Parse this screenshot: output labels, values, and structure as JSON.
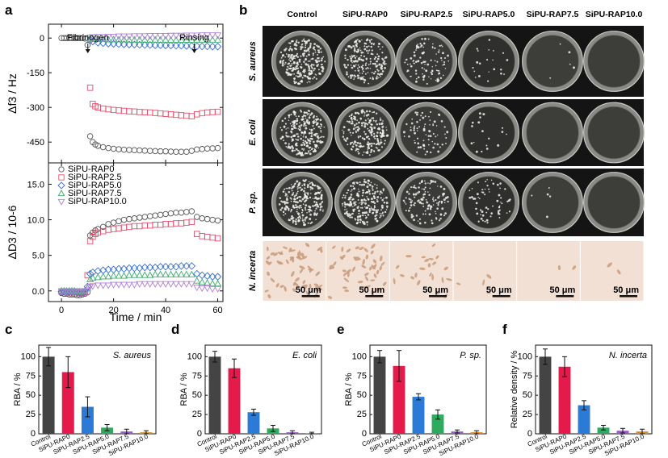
{
  "panel_letters": {
    "a": "a",
    "b": "b",
    "c": "c",
    "d": "d",
    "e": "e",
    "f": "f"
  },
  "chart_data": [
    {
      "id": "a_top",
      "type": "scatter",
      "ylabel": "Δf3 / Hz",
      "ylim": [
        -540,
        60
      ],
      "xlim": [
        -5,
        62
      ],
      "yticks": [
        0,
        -150,
        -300,
        -450
      ],
      "xticks": [
        0,
        20,
        40,
        60
      ],
      "annotations": [
        "Fibrinogen",
        "Rinsing"
      ],
      "series": [
        {
          "name": "SiPU-RAP0",
          "marker": "circle",
          "color": "#555555",
          "x": [
            0,
            1,
            2,
            3,
            4,
            5,
            6,
            7,
            8,
            9,
            10,
            11,
            12,
            13,
            14,
            16,
            18,
            20,
            22,
            24,
            26,
            28,
            30,
            32,
            34,
            36,
            38,
            40,
            42,
            44,
            46,
            48,
            50,
            52,
            54,
            56,
            58,
            60
          ],
          "y": [
            0,
            0,
            0,
            0,
            0,
            0,
            0,
            0,
            0,
            -2,
            -30,
            -425,
            -450,
            -460,
            -466,
            -472,
            -476,
            -479,
            -481,
            -483,
            -484,
            -485,
            -486,
            -487,
            -488,
            -489,
            -490,
            -490,
            -491,
            -492,
            -492,
            -492,
            -488,
            -482,
            -480,
            -478,
            -477,
            -476
          ]
        },
        {
          "name": "SiPU-RAP2.5",
          "marker": "square",
          "color": "#e0506e",
          "x": [
            11,
            12,
            13,
            14,
            16,
            18,
            20,
            22,
            24,
            26,
            28,
            30,
            32,
            34,
            36,
            38,
            40,
            42,
            44,
            46,
            48,
            50,
            52,
            54,
            56,
            58,
            60
          ],
          "y": [
            -215,
            -285,
            -295,
            -300,
            -305,
            -308,
            -311,
            -313,
            -315,
            -317,
            -318,
            -320,
            -321,
            -322,
            -324,
            -326,
            -328,
            -330,
            -332,
            -334,
            -336,
            -338,
            -330,
            -325,
            -322,
            -320,
            -319
          ]
        },
        {
          "name": "SiPU-RAP5.0",
          "marker": "diamond",
          "color": "#3a6fcf",
          "x": [
            11,
            12,
            14,
            16,
            18,
            20,
            22,
            24,
            26,
            28,
            30,
            32,
            34,
            36,
            38,
            40,
            42,
            44,
            46,
            48,
            50,
            52,
            54,
            56,
            58,
            60
          ],
          "y": [
            -10,
            -15,
            -20,
            -22,
            -24,
            -25,
            -26,
            -27,
            -28,
            -28,
            -29,
            -30,
            -30,
            -31,
            -31,
            -32,
            -32,
            -33,
            -33,
            -34,
            -34,
            -35,
            -36,
            -36,
            -37,
            -37
          ]
        },
        {
          "name": "SiPU-RAP7.5",
          "marker": "triangle",
          "color": "#3cae6a",
          "x": [
            11,
            12,
            14,
            16,
            18,
            20,
            22,
            24,
            26,
            28,
            30,
            32,
            34,
            36,
            38,
            40,
            42,
            44,
            46,
            48,
            50,
            52,
            54,
            56,
            58,
            60
          ],
          "y": [
            -3,
            -5,
            -6,
            -6,
            -7,
            -7,
            -7,
            -7,
            -8,
            -8,
            -8,
            -8,
            -8,
            -8,
            -8,
            -8,
            -9,
            -9,
            -9,
            -9,
            -9,
            -8,
            -8,
            -8,
            -8,
            -8
          ]
        },
        {
          "name": "SiPU-RAP10.0",
          "marker": "triangle-down",
          "color": "#b07fd8",
          "x": [
            11,
            12,
            14,
            16,
            18,
            20,
            22,
            24,
            26,
            28,
            30,
            32,
            34,
            36,
            38,
            40,
            42,
            44,
            46,
            48,
            50,
            52,
            54,
            56,
            58,
            60
          ],
          "y": [
            3,
            5,
            6,
            6,
            7,
            7,
            8,
            8,
            8,
            9,
            9,
            9,
            10,
            10,
            10,
            10,
            11,
            11,
            11,
            12,
            12,
            12,
            13,
            13,
            13,
            13
          ]
        }
      ]
    },
    {
      "id": "a_bottom",
      "type": "scatter",
      "xlabel": "Time / min",
      "ylabel": "ΔD3 / 10-6",
      "ylim": [
        -1.5,
        18
      ],
      "xlim": [
        -5,
        62
      ],
      "yticks": [
        0.0,
        5.0,
        10.0,
        15.0
      ],
      "xticks": [
        0,
        20,
        40,
        60
      ],
      "legend": "top-left",
      "series": [
        {
          "name": "SiPU-RAP0",
          "marker": "circle",
          "color": "#555555",
          "x": [
            0,
            1,
            2,
            3,
            4,
            5,
            6,
            7,
            8,
            9,
            10,
            11,
            12,
            13,
            14,
            16,
            18,
            20,
            22,
            24,
            26,
            28,
            30,
            32,
            34,
            36,
            38,
            40,
            42,
            44,
            46,
            48,
            50,
            52,
            54,
            56,
            58,
            60
          ],
          "y": [
            -0.3,
            -0.4,
            -0.4,
            -0.5,
            -0.5,
            -0.5,
            -0.6,
            -0.6,
            -0.5,
            -0.4,
            -0.2,
            7.8,
            8.2,
            8.5,
            8.7,
            9.0,
            9.4,
            9.6,
            9.8,
            10.0,
            10.1,
            10.2,
            10.3,
            10.4,
            10.5,
            10.6,
            10.7,
            10.8,
            10.9,
            11.0,
            11.0,
            11.1,
            11.2,
            10.4,
            10.2,
            10.1,
            10.0,
            9.9
          ]
        },
        {
          "name": "SiPU-RAP2.5",
          "marker": "square",
          "color": "#e0506e",
          "x": [
            0,
            1,
            2,
            3,
            4,
            5,
            6,
            7,
            8,
            9,
            10,
            11,
            12,
            13,
            14,
            16,
            18,
            20,
            22,
            24,
            26,
            28,
            30,
            32,
            34,
            36,
            38,
            40,
            42,
            44,
            46,
            48,
            50,
            52,
            54,
            56,
            58,
            60
          ],
          "y": [
            -0.1,
            -0.1,
            -0.1,
            -0.2,
            -0.2,
            -0.2,
            -0.2,
            -0.3,
            -0.3,
            -0.2,
            2.2,
            7.0,
            7.6,
            8.0,
            8.2,
            8.4,
            8.6,
            8.7,
            8.8,
            8.9,
            9.0,
            9.1,
            9.1,
            9.2,
            9.2,
            9.3,
            9.3,
            9.4,
            9.4,
            9.5,
            9.5,
            9.6,
            9.7,
            8.0,
            7.7,
            7.6,
            7.5,
            7.4
          ]
        },
        {
          "name": "SiPU-RAP5.0",
          "marker": "diamond",
          "color": "#3a6fcf",
          "x": [
            0,
            1,
            2,
            3,
            4,
            5,
            6,
            7,
            8,
            9,
            10,
            11,
            12,
            14,
            16,
            18,
            20,
            22,
            24,
            26,
            28,
            30,
            32,
            34,
            36,
            38,
            40,
            42,
            44,
            46,
            48,
            50,
            52,
            54,
            56,
            58,
            60
          ],
          "y": [
            -0.1,
            -0.1,
            -0.1,
            -0.1,
            -0.1,
            -0.1,
            -0.2,
            -0.2,
            -0.2,
            -0.1,
            0.6,
            2.4,
            2.6,
            2.8,
            2.9,
            3.0,
            3.0,
            3.1,
            3.1,
            3.2,
            3.2,
            3.2,
            3.3,
            3.3,
            3.3,
            3.4,
            3.4,
            3.4,
            3.4,
            3.5,
            3.5,
            3.5,
            2.4,
            2.2,
            2.1,
            2.0,
            2.0
          ]
        },
        {
          "name": "SiPU-RAP7.5",
          "marker": "triangle",
          "color": "#3cae6a",
          "x": [
            0,
            1,
            2,
            3,
            4,
            5,
            6,
            7,
            8,
            9,
            10,
            11,
            12,
            14,
            16,
            18,
            20,
            22,
            24,
            26,
            28,
            30,
            32,
            34,
            36,
            38,
            40,
            42,
            44,
            46,
            48,
            50,
            52,
            54,
            56,
            58,
            60
          ],
          "y": [
            0.0,
            0.0,
            0.0,
            0.0,
            0.0,
            0.0,
            -0.1,
            -0.1,
            -0.1,
            0.0,
            0.4,
            1.6,
            1.8,
            1.9,
            2.0,
            2.0,
            2.1,
            2.1,
            2.1,
            2.2,
            2.2,
            2.2,
            2.2,
            2.2,
            2.3,
            2.3,
            2.3,
            2.3,
            2.3,
            2.3,
            2.3,
            2.3,
            1.4,
            1.2,
            1.1,
            1.0,
            1.0
          ]
        },
        {
          "name": "SiPU-RAP10.0",
          "marker": "triangle-down",
          "color": "#b07fd8",
          "x": [
            0,
            1,
            2,
            3,
            4,
            5,
            6,
            7,
            8,
            9,
            10,
            11,
            12,
            14,
            16,
            18,
            20,
            22,
            24,
            26,
            28,
            30,
            32,
            34,
            36,
            38,
            40,
            42,
            44,
            46,
            48,
            50,
            52,
            54,
            56,
            58,
            60
          ],
          "y": [
            0.0,
            0.0,
            0.0,
            0.0,
            0.0,
            0.0,
            0.0,
            0.0,
            0.0,
            0.0,
            0.2,
            0.6,
            0.7,
            0.8,
            0.8,
            0.8,
            0.9,
            0.9,
            0.9,
            0.9,
            0.9,
            1.0,
            1.0,
            1.0,
            1.0,
            1.0,
            1.0,
            1.0,
            1.0,
            1.0,
            1.0,
            1.0,
            0.5,
            0.4,
            0.4,
            0.3,
            0.3
          ]
        }
      ]
    },
    {
      "id": "c",
      "type": "bar",
      "title": "S. aureus",
      "ylabel": "RBA / %",
      "ylim": [
        0,
        115
      ],
      "yticks": [
        0,
        25,
        50,
        75,
        100
      ],
      "categories": [
        "Control",
        "SiPU-RAP0",
        "SiPU-RAP2.5",
        "SiPU-RAP5.0",
        "SiPU-RAP7.5",
        "SiPU-RAP10.0"
      ],
      "values": [
        100,
        80,
        35,
        8,
        3,
        2
      ],
      "errors": [
        12,
        20,
        13,
        4,
        3,
        2
      ]
    },
    {
      "id": "d",
      "type": "bar",
      "title": "E. coli",
      "ylabel": "RBA / %",
      "ylim": [
        0,
        115
      ],
      "yticks": [
        0,
        25,
        50,
        75,
        100
      ],
      "categories": [
        "Control",
        "SiPU-RAP0",
        "SiPU-RAP2.5",
        "SiPU-RAP5.0",
        "SiPU-RAP7.5",
        "SiPU-RAP10.0"
      ],
      "values": [
        100,
        85,
        28,
        7,
        2,
        1
      ],
      "errors": [
        7,
        12,
        4,
        4,
        2,
        1
      ]
    },
    {
      "id": "e",
      "type": "bar",
      "title": "P. sp.",
      "ylabel": "RBA / %",
      "ylim": [
        0,
        115
      ],
      "yticks": [
        0,
        25,
        50,
        75,
        100
      ],
      "categories": [
        "Control",
        "SiPU-RAP0",
        "SiPU-RAP2.5",
        "SiPU-RAP5.0",
        "SiPU-RAP7.5",
        "SiPU-RAP10.0"
      ],
      "values": [
        100,
        88,
        48,
        25,
        3,
        2
      ],
      "errors": [
        8,
        20,
        4,
        6,
        2,
        2
      ]
    },
    {
      "id": "f",
      "type": "bar",
      "title": "N. incerta",
      "ylabel": "Relative density / %",
      "ylim": [
        0,
        115
      ],
      "yticks": [
        0,
        25,
        50,
        75,
        100
      ],
      "categories": [
        "Control",
        "SiPU-RAP0",
        "SiPU-RAP2.5",
        "SiPU-RAP5.0",
        "SiPU-RAP7.5",
        "SiPU-RAP10.0"
      ],
      "values": [
        100,
        87,
        37,
        8,
        4,
        3
      ],
      "errors": [
        10,
        13,
        6,
        3,
        3,
        3
      ]
    }
  ],
  "bar_colors": [
    "#444444",
    "#e41a4b",
    "#2a7ad6",
    "#2eaa5e",
    "#9b59d0",
    "#e08a1e"
  ],
  "panel_b": {
    "columns": [
      "Control",
      "SiPU-RAP0",
      "SiPU-RAP2.5",
      "SiPU-RAP5.0",
      "SiPU-RAP7.5",
      "SiPU-RAP10.0"
    ],
    "rows": [
      "S. aureus",
      "E. coli",
      "P. sp.",
      "N. incerta"
    ],
    "scale_bar": "50 μm",
    "colony_density": [
      [
        1.0,
        0.75,
        0.4,
        0.08,
        0.02,
        0.0
      ],
      [
        1.0,
        0.85,
        0.3,
        0.07,
        0.0,
        0.0
      ],
      [
        1.0,
        0.9,
        0.5,
        0.25,
        0.02,
        0.0
      ]
    ],
    "cell_density": [
      1.0,
      0.85,
      0.4,
      0.08,
      0.04,
      0.03
    ]
  }
}
